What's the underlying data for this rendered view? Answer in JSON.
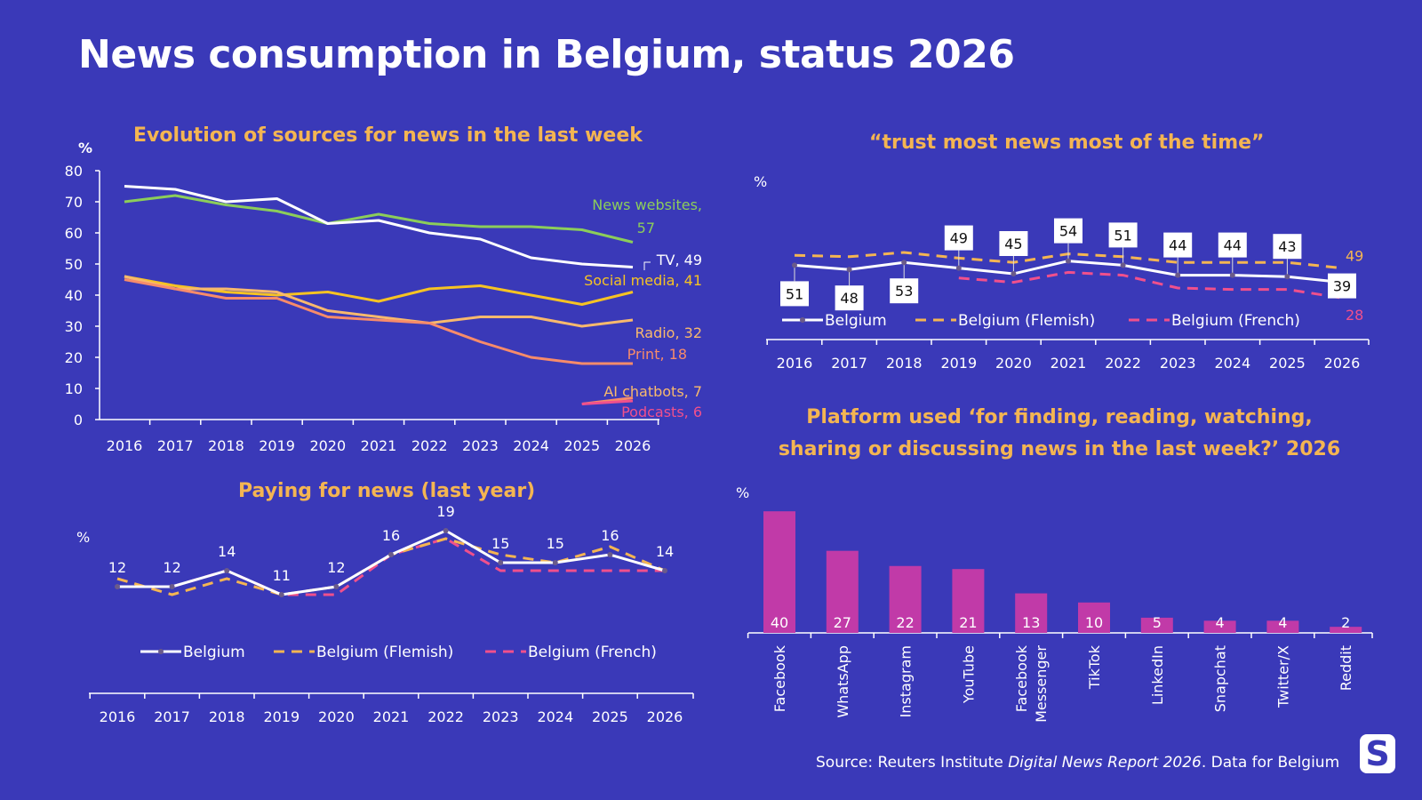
{
  "title": "News consumption in Belgium, status 2026",
  "source": {
    "prefix": "Source: Reuters Institute ",
    "report": "Digital News Report 2026",
    "suffix": ". Data for Belgium"
  },
  "logo": "S",
  "colors": {
    "background": "#3a39b8",
    "heading": "#f4b552",
    "white": "#ffffff",
    "green": "#8ccd5a",
    "yellow": "#f6c323",
    "peach": "#f8b96d",
    "salmon": "#f78b6a",
    "pink": "#f0508c",
    "flemish": "#f4b552",
    "bar": "#c13aa8"
  },
  "chart_data": [
    {
      "id": "sources",
      "type": "line",
      "title": "Evolution of sources for news in the last week",
      "ylabel": "%",
      "ylim": [
        0,
        80
      ],
      "yticks": [
        0,
        10,
        20,
        30,
        40,
        50,
        60,
        70,
        80
      ],
      "x": [
        "2016",
        "2017",
        "2018",
        "2019",
        "2020",
        "2021",
        "2022",
        "2023",
        "2024",
        "2025",
        "2026"
      ],
      "series": [
        {
          "name": "News websites",
          "label": "News websites,",
          "value_label": "57",
          "color": "#8ccd5a",
          "values": [
            70,
            72,
            69,
            67,
            63,
            66,
            63,
            62,
            62,
            61,
            57
          ]
        },
        {
          "name": "TV",
          "label": "TV, 49",
          "color": "#ffffff",
          "values": [
            75,
            74,
            70,
            71,
            63,
            64,
            60,
            58,
            52,
            50,
            49
          ]
        },
        {
          "name": "Social media",
          "label": "Social media, 41",
          "color": "#f6c323",
          "values": [
            46,
            43,
            41,
            40,
            41,
            38,
            42,
            43,
            40,
            37,
            41
          ]
        },
        {
          "name": "Radio",
          "label": "Radio, 32",
          "color": "#f8b96d",
          "values": [
            46,
            42,
            42,
            41,
            35,
            33,
            31,
            33,
            33,
            30,
            32
          ]
        },
        {
          "name": "Print",
          "label": "Print, 18",
          "color": "#f78b6a",
          "values": [
            45,
            42,
            39,
            39,
            33,
            32,
            31,
            25,
            20,
            18,
            18
          ]
        },
        {
          "name": "AI chatbots",
          "label": "AI chatbots, 7",
          "color": "#f78b6a",
          "values": [
            null,
            null,
            null,
            null,
            null,
            null,
            null,
            null,
            null,
            5,
            7
          ]
        },
        {
          "name": "Podcasts",
          "label": "Podcasts, 6",
          "color": "#f0508c",
          "values": [
            null,
            null,
            null,
            null,
            null,
            null,
            null,
            null,
            null,
            5,
            6
          ]
        }
      ]
    },
    {
      "id": "trust",
      "type": "line",
      "title": "“trust most news most of the time”",
      "ylabel": "%",
      "x": [
        "2016",
        "2017",
        "2018",
        "2019",
        "2020",
        "2021",
        "2022",
        "2023",
        "2024",
        "2025",
        "2026"
      ],
      "legend_position": "bottom",
      "series": [
        {
          "name": "Belgium",
          "color": "#ffffff",
          "values": [
            51,
            48,
            53,
            49,
            45,
            54,
            51,
            44,
            44,
            43,
            39
          ]
        },
        {
          "name": "Belgium (Flemish)",
          "color": "#f4b552",
          "dashed": true,
          "values": [
            58,
            57,
            60,
            56,
            53,
            59,
            57,
            53,
            53,
            53,
            49
          ],
          "end_label": "49"
        },
        {
          "name": "Belgium (French)",
          "color": "#f0508c",
          "dashed": true,
          "values": [
            null,
            null,
            null,
            42,
            39,
            46,
            44,
            35,
            34,
            34,
            28
          ],
          "end_label": "28"
        }
      ]
    },
    {
      "id": "paying",
      "type": "line",
      "title": "Paying for news (last year)",
      "ylabel": "%",
      "x": [
        "2016",
        "2017",
        "2018",
        "2019",
        "2020",
        "2021",
        "2022",
        "2023",
        "2024",
        "2025",
        "2026"
      ],
      "legend_position": "bottom",
      "series": [
        {
          "name": "Belgium",
          "color": "#ffffff",
          "values": [
            12,
            12,
            14,
            11,
            12,
            16,
            19,
            15,
            15,
            16,
            14
          ]
        },
        {
          "name": "Belgium (Flemish)",
          "color": "#f4b552",
          "dashed": true,
          "values": [
            13,
            11,
            13,
            11,
            12,
            16,
            18,
            16,
            15,
            17,
            14
          ]
        },
        {
          "name": "Belgium (French)",
          "color": "#f0508c",
          "dashed": true,
          "values": [
            12,
            12,
            14,
            11,
            11,
            16,
            18,
            14,
            14,
            14,
            14
          ]
        }
      ]
    },
    {
      "id": "platforms",
      "type": "bar",
      "title": "Platform used ‘for finding, reading, watching, sharing or discussing news in the last week?’ 2026",
      "ylabel": "%",
      "categories": [
        "Facebook",
        "WhatsApp",
        "Instagram",
        "YouTube",
        "Facebook Messenger",
        "TikTok",
        "LinkedIn",
        "Snapchat",
        "Twitter/X",
        "Reddit"
      ],
      "values": [
        40,
        27,
        22,
        21,
        13,
        10,
        5,
        4,
        4,
        2
      ],
      "color": "#c13aa8"
    }
  ]
}
